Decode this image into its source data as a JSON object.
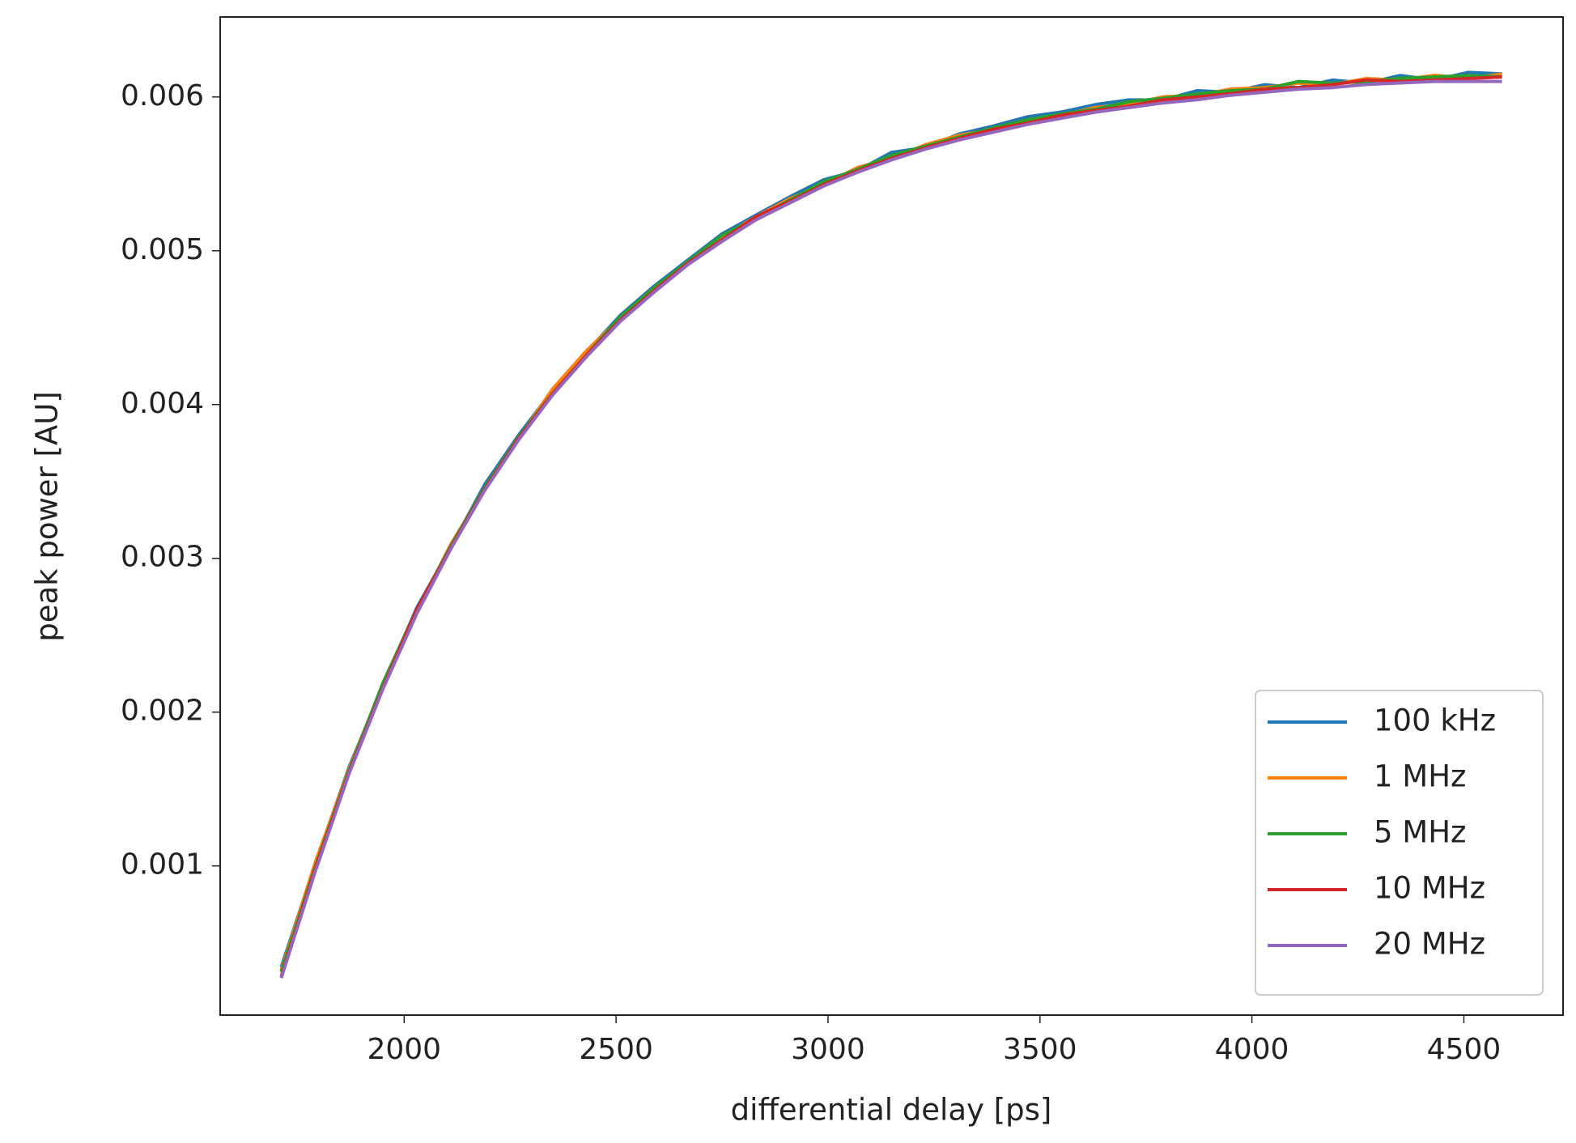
{
  "chart_data": {
    "type": "line",
    "x_label": "differential delay [ps]",
    "y_label": "peak power [AU]",
    "x": [
      1710,
      1790,
      1870,
      1950,
      2030,
      2110,
      2190,
      2270,
      2350,
      2430,
      2510,
      2590,
      2670,
      2750,
      2830,
      2910,
      2990,
      3070,
      3150,
      3230,
      3310,
      3390,
      3470,
      3550,
      3630,
      3710,
      3790,
      3870,
      3950,
      4030,
      4110,
      4190,
      4270,
      4350,
      4430,
      4510,
      4590
    ],
    "series": [
      {
        "name": "100 kHz",
        "color": "#1f77b4",
        "values": [
          0.000341,
          0.001011,
          0.001642,
          0.002171,
          0.00268,
          0.003071,
          0.00348,
          0.003801,
          0.004091,
          0.004341,
          0.00458,
          0.004771,
          0.004941,
          0.00511,
          0.005232,
          0.005351,
          0.005462,
          0.005521,
          0.00564,
          0.005672,
          0.00576,
          0.005811,
          0.005871,
          0.005902,
          0.00595,
          0.005981,
          0.00598,
          0.006041,
          0.006031,
          0.00608,
          0.006061,
          0.00611,
          0.00609,
          0.00614,
          0.00611,
          0.00616,
          0.00615
        ]
      },
      {
        "name": "1 MHz",
        "color": "#ff7f0e",
        "values": [
          0.000321,
          0.001021,
          0.001631,
          0.002181,
          0.002651,
          0.003091,
          0.003452,
          0.003779,
          0.004101,
          0.00435,
          0.004562,
          0.004761,
          0.00492,
          0.005092,
          0.005221,
          0.00534,
          0.00543,
          0.005542,
          0.005601,
          0.00569,
          0.005752,
          0.00579,
          0.005841,
          0.00588,
          0.005932,
          0.005951,
          0.006001,
          0.00601,
          0.006052,
          0.006061,
          0.00609,
          0.006081,
          0.00612,
          0.00611,
          0.006141,
          0.00612,
          0.00615
        ]
      },
      {
        "name": "5 MHz",
        "color": "#2ca02c",
        "values": [
          0.000311,
          0.000991,
          0.001621,
          0.00219,
          0.00267,
          0.003081,
          0.003461,
          0.00379,
          0.004071,
          0.004321,
          0.004571,
          0.00476,
          0.004931,
          0.005101,
          0.00521,
          0.00533,
          0.00545,
          0.00553,
          0.005621,
          0.00568,
          0.00574,
          0.0058,
          0.005852,
          0.00589,
          0.00592,
          0.00597,
          0.005991,
          0.00602,
          0.006041,
          0.006051,
          0.006101,
          0.00609,
          0.0061,
          0.006122,
          0.00613,
          0.00614,
          0.006131
        ]
      },
      {
        "name": "10 MHz",
        "color": "#d62728",
        "values": [
          0.000281,
          0.000981,
          0.00161,
          0.002161,
          0.002671,
          0.00307,
          0.00345,
          0.003781,
          0.00407,
          0.004321,
          0.00455,
          0.004741,
          0.004921,
          0.005071,
          0.005222,
          0.005321,
          0.005431,
          0.00552,
          0.005601,
          0.00567,
          0.005731,
          0.00579,
          0.00583,
          0.005881,
          0.005912,
          0.00594,
          0.005981,
          0.006,
          0.006021,
          0.00605,
          0.006061,
          0.00608,
          0.006111,
          0.006101,
          0.00611,
          0.00612,
          0.00613
        ]
      },
      {
        "name": "20 MHz",
        "color": "#9467bd",
        "values": [
          0.000271,
          0.000961,
          0.0016,
          0.002151,
          0.002641,
          0.003061,
          0.003441,
          0.00377,
          0.004061,
          0.004311,
          0.004541,
          0.004731,
          0.004911,
          0.005061,
          0.005201,
          0.005311,
          0.005421,
          0.005511,
          0.005591,
          0.005661,
          0.005721,
          0.005771,
          0.005821,
          0.005861,
          0.005901,
          0.005931,
          0.005961,
          0.005982,
          0.006011,
          0.006031,
          0.006051,
          0.006061,
          0.006081,
          0.006091,
          0.006101,
          0.006101,
          0.006101
        ]
      }
    ],
    "xlim": [
      1566,
      4734
    ],
    "ylim": [
      3e-05,
      0.00652
    ],
    "xticks": [
      2000,
      2500,
      3000,
      3500,
      4000,
      4500
    ],
    "yticks": [
      0.001,
      0.002,
      0.003,
      0.004,
      0.005,
      0.006
    ],
    "legend": "lower right",
    "grid": false
  }
}
